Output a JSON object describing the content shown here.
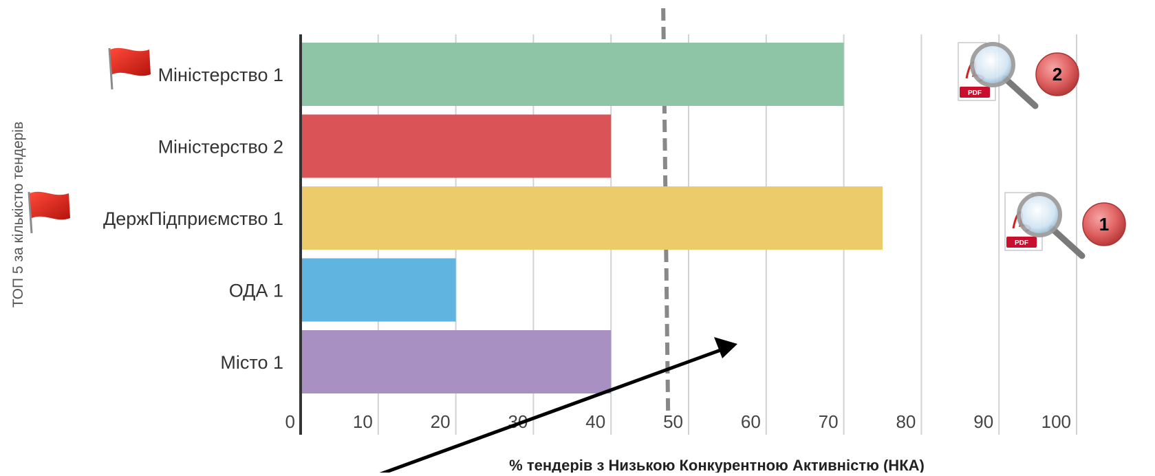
{
  "chart_data": {
    "type": "bar",
    "orientation": "horizontal",
    "categories": [
      "Міністерство 1",
      "Міністерство 2",
      "ДержПідприємство 1",
      "ОДА 1",
      "Місто 1"
    ],
    "values": [
      70,
      40,
      75,
      20,
      40
    ],
    "colors": [
      "#8ec5a6",
      "#d95357",
      "#eccb6a",
      "#5fb4e0",
      "#a890c2"
    ],
    "xlabel": "% тендерів з Низькою Конкурентною Активністю (НКА)",
    "ylabel": "ТОП 5 за кількістю тендерів",
    "xlim": [
      0,
      100
    ],
    "xticks": [
      0,
      10,
      20,
      30,
      40,
      50,
      60,
      70,
      80,
      90,
      100
    ],
    "grid": true,
    "reference_line": 47,
    "flagged_categories": [
      "Міністерство 1",
      "ДержПідприємство 1"
    ]
  },
  "annotations": {
    "badges": [
      {
        "number": "2",
        "category": "Міністерство 1"
      },
      {
        "number": "1",
        "category": "ДержПідприємство 1"
      }
    ],
    "pdf_label": "PDF",
    "icons": {
      "flag": "red-flag-icon",
      "document": "pdf-search-icon"
    }
  }
}
